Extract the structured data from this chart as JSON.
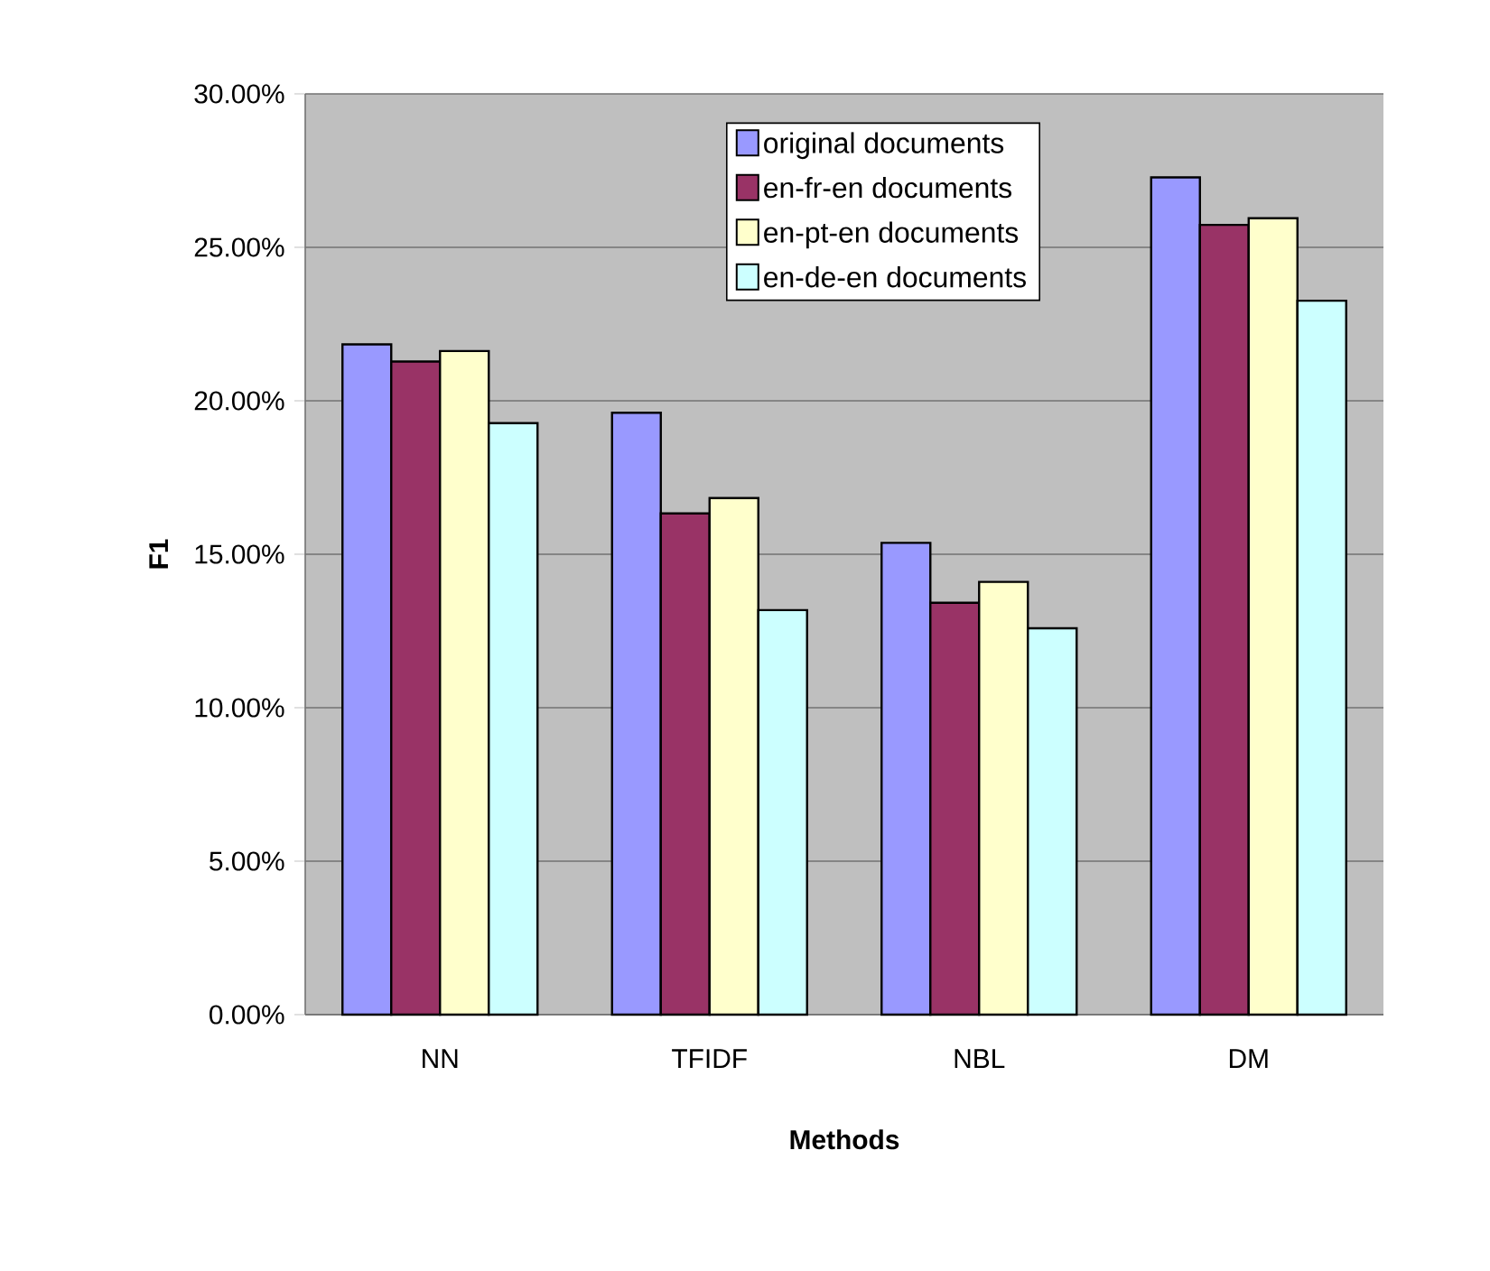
{
  "chart_data": {
    "type": "bar",
    "xlabel": "Methods",
    "ylabel": "F1",
    "categories": [
      "NN",
      "TFIDF",
      "NBL",
      "DM"
    ],
    "series": [
      {
        "name": "original documents",
        "color": "#9999ff",
        "values": [
          21.84,
          19.61,
          15.37,
          27.28
        ]
      },
      {
        "name": "en-fr-en documents",
        "color": "#993366",
        "values": [
          21.28,
          16.33,
          13.42,
          25.73
        ]
      },
      {
        "name": "en-pt-en documents",
        "color": "#ffffcc",
        "values": [
          21.62,
          16.83,
          14.1,
          25.95
        ]
      },
      {
        "name": "en-de-en documents",
        "color": "#ccffff",
        "values": [
          19.27,
          13.18,
          12.59,
          23.26
        ]
      }
    ],
    "ylim": [
      0,
      30
    ],
    "yticks": [
      {
        "value": 0,
        "label": "0.00%"
      },
      {
        "value": 5,
        "label": "5.00%"
      },
      {
        "value": 10,
        "label": "10.00%"
      },
      {
        "value": 15,
        "label": "15.00%"
      },
      {
        "value": 20,
        "label": "20.00%"
      },
      {
        "value": 25,
        "label": "25.00%"
      },
      {
        "value": 30,
        "label": "30.00%"
      }
    ],
    "grid": "y",
    "legend": "top"
  }
}
